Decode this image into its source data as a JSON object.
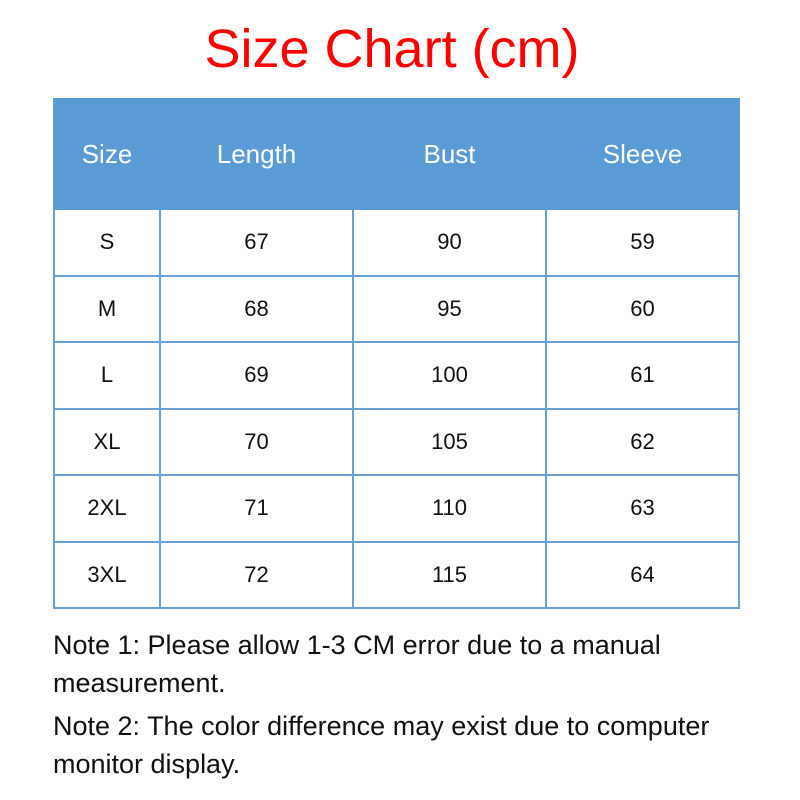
{
  "title": "Size Chart (cm)",
  "colors": {
    "title": "#ff0000",
    "header_bg": "#5b9bd5",
    "border": "#6a9fd6"
  },
  "table": {
    "headers": [
      "Size",
      "Length",
      "Bust",
      "Sleeve"
    ],
    "rows": [
      [
        "S",
        "67",
        "90",
        "59"
      ],
      [
        "M",
        "68",
        "95",
        "60"
      ],
      [
        "L",
        "69",
        "100",
        "61"
      ],
      [
        "XL",
        "70",
        "105",
        "62"
      ],
      [
        "2XL",
        "71",
        "110",
        "63"
      ],
      [
        "3XL",
        "72",
        "115",
        "64"
      ]
    ]
  },
  "notes": [
    "Note 1: Please allow 1-3 CM error due to a manual measurement.",
    "Note 2: The color difference may exist due to computer monitor display."
  ]
}
